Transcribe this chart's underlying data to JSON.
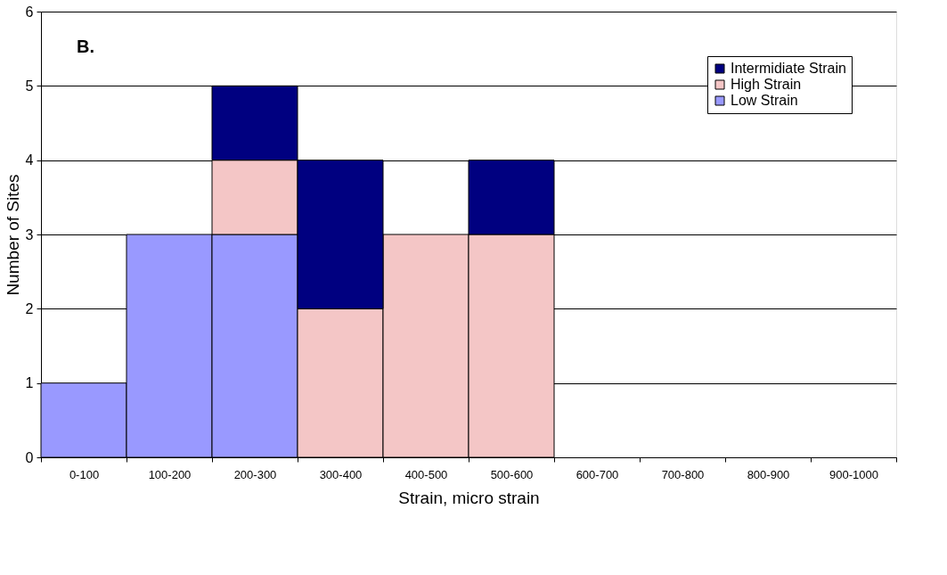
{
  "chart_data": {
    "type": "bar",
    "stacked": true,
    "xlabel": "Strain, micro strain",
    "ylabel": "Number of Sites",
    "annotations": [
      "B."
    ],
    "categories": [
      "0-100",
      "100-200",
      "200-300",
      "300-400",
      "400-500",
      "500-600",
      "600-700",
      "700-800",
      "800-900",
      "900-1000"
    ],
    "series": [
      {
        "name": "Low Strain",
        "color": "#9999ff",
        "values": [
          1,
          3,
          3,
          0,
          0,
          0,
          0,
          0,
          0,
          0
        ]
      },
      {
        "name": "High Strain",
        "color": "#f4c6c6",
        "values": [
          0,
          0,
          1,
          2,
          3,
          3,
          0,
          0,
          0,
          0
        ]
      },
      {
        "name": "Intermidiate Strain",
        "color": "#000080",
        "values": [
          0,
          0,
          1,
          2,
          0,
          1,
          0,
          0,
          0,
          0
        ]
      }
    ],
    "ylim": [
      0,
      6
    ],
    "yticks": [
      0,
      1,
      2,
      3,
      4,
      5,
      6
    ],
    "grid": "y",
    "legend": "top right"
  }
}
